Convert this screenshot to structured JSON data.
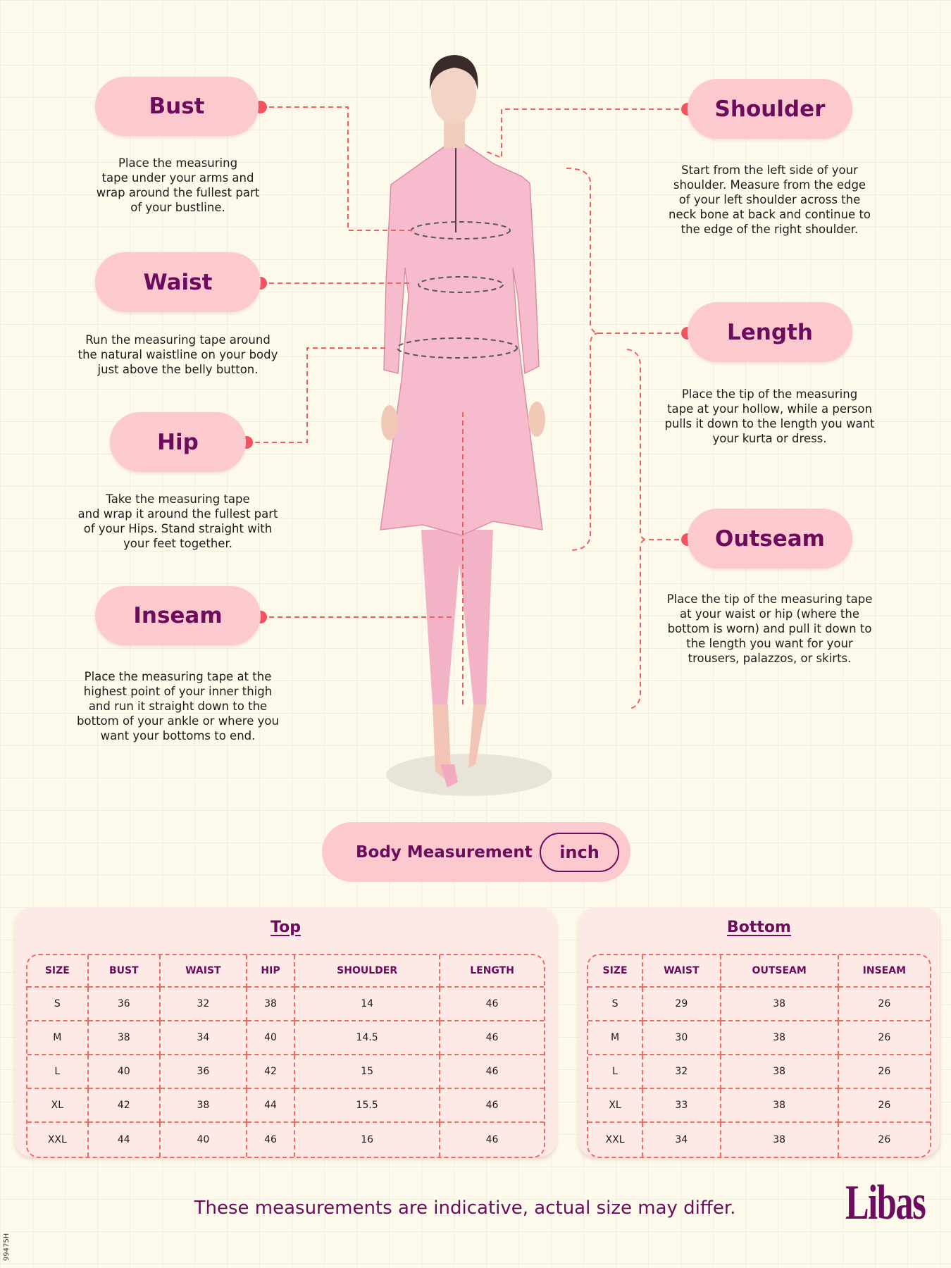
{
  "measurements": {
    "bust": {
      "label": "Bust",
      "lines": [
        "Place the measuring",
        "tape under your arms and",
        "wrap around the fullest part",
        "of your bustline."
      ]
    },
    "waist": {
      "label": "Waist",
      "lines": [
        "Run the measuring tape around",
        "the natural waistline on your body",
        "just above the belly button."
      ]
    },
    "hip": {
      "label": "Hip",
      "lines": [
        "Take the measuring tape",
        "and wrap it around the fullest part",
        "of your Hips. Stand straight with",
        "your feet together."
      ]
    },
    "inseam": {
      "label": "Inseam",
      "lines": [
        "Place the measuring tape at the",
        "highest point of your inner thigh",
        "and run it straight down to the",
        "bottom of your ankle or where you",
        "want your bottoms to end."
      ]
    },
    "shoulder": {
      "label": "Shoulder",
      "lines": [
        "Start from the left side of your",
        "shoulder. Measure from the edge",
        "of your left shoulder across the",
        "neck bone at back and continue to",
        "the edge of the right shoulder."
      ]
    },
    "length": {
      "label": "Length",
      "lines": [
        "Place the tip of the measuring",
        "tape at your hollow, while a person",
        "pulls it down to the length you want",
        "your kurta or dress."
      ]
    },
    "outseam": {
      "label": "Outseam",
      "lines": [
        "Place the tip of the measuring tape",
        "at your waist or hip (where the",
        "bottom is worn) and pull it down to",
        "the length you want for your",
        "trousers, palazzos, or skirts."
      ]
    }
  },
  "body_measurement": {
    "label": "Body Measurement",
    "unit": "inch"
  },
  "top_table": {
    "title": "Top",
    "headers": [
      "SIZE",
      "BUST",
      "WAIST",
      "HIP",
      "SHOULDER",
      "LENGTH"
    ],
    "rows": [
      [
        "S",
        "36",
        "32",
        "38",
        "14",
        "46"
      ],
      [
        "M",
        "38",
        "34",
        "40",
        "14.5",
        "46"
      ],
      [
        "L",
        "40",
        "36",
        "42",
        "15",
        "46"
      ],
      [
        "XL",
        "42",
        "38",
        "44",
        "15.5",
        "46"
      ],
      [
        "XXL",
        "44",
        "40",
        "46",
        "16",
        "46"
      ]
    ]
  },
  "bottom_table": {
    "title": "Bottom",
    "headers": [
      "SIZE",
      "WAIST",
      "OUTSEAM",
      "INSEAM"
    ],
    "rows": [
      [
        "S",
        "29",
        "38",
        "26"
      ],
      [
        "M",
        "30",
        "38",
        "26"
      ],
      [
        "L",
        "32",
        "38",
        "26"
      ],
      [
        "XL",
        "33",
        "38",
        "26"
      ],
      [
        "XXL",
        "34",
        "38",
        "26"
      ]
    ]
  },
  "footer": {
    "disclaimer": "These measurements are indicative, actual size may differ.",
    "logo": "Libas",
    "code": "99475H"
  },
  "colors": {
    "accent": "#f4535e",
    "brand": "#6b0c5c",
    "pill": "#fcc9cf",
    "background": "#fdfaec"
  }
}
